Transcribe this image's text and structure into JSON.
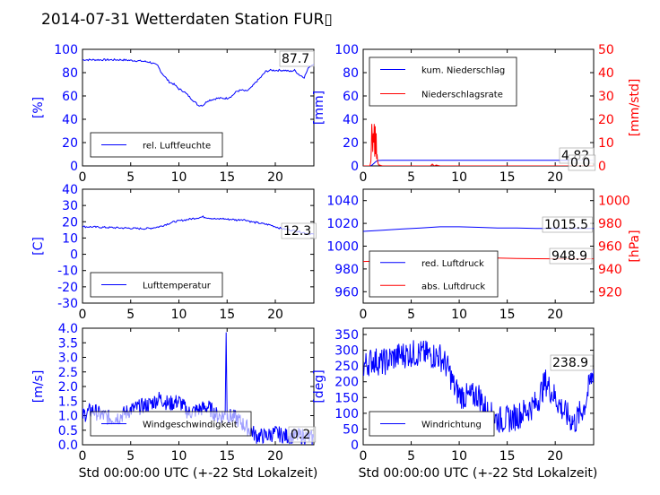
{
  "figure": {
    "title": "2014-07-31 Wetterdaten Station FUR▯",
    "xlabel": "Std 00:00:00 UTC (+-22 Std Lokalzeit)"
  },
  "colors": {
    "primary": "#0000ff",
    "secondary": "#ff0000"
  },
  "chart_data": [
    {
      "id": "humidity",
      "type": "line",
      "ylabel": "[%]",
      "xlim": [
        0,
        24
      ],
      "ylim": [
        0,
        100
      ],
      "xticks": [
        0,
        5,
        10,
        15,
        20
      ],
      "yticks": [
        0,
        20,
        40,
        60,
        80,
        100
      ],
      "annotations": [
        "87.7"
      ],
      "legend": "lower-left",
      "series": [
        {
          "name": "rel. Luftfeuchte",
          "color": "#0000ff",
          "x": [
            0,
            2,
            4,
            6,
            7,
            7.8,
            8.2,
            9,
            9.5,
            10,
            10.5,
            11,
            11.5,
            12,
            12.5,
            13,
            13.5,
            14,
            14.5,
            15,
            15.5,
            16,
            16.5,
            17,
            17.5,
            18,
            18.5,
            19,
            19.5,
            20,
            20.5,
            21,
            21.5,
            22,
            22.5,
            23,
            23.5,
            24
          ],
          "y": [
            91,
            91,
            91,
            90,
            89,
            86,
            80,
            72,
            70,
            66,
            64,
            60,
            56,
            52,
            52,
            56,
            57,
            58,
            58,
            58,
            60,
            64,
            65,
            64,
            67,
            72,
            76,
            81,
            82,
            82,
            82,
            82,
            81,
            82,
            78,
            76,
            85,
            87.7
          ]
        }
      ]
    },
    {
      "id": "precip",
      "type": "line",
      "ylabel": "[mm]",
      "y2label": "[mm/std]",
      "xlim": [
        0,
        24
      ],
      "ylim": [
        0,
        100
      ],
      "y2lim": [
        0,
        50
      ],
      "xticks": [
        0,
        5,
        10,
        15,
        20
      ],
      "yticks": [
        0,
        20,
        40,
        60,
        80,
        100
      ],
      "y2ticks": [
        0,
        10,
        20,
        30,
        40,
        50
      ],
      "annotations": [
        "4.82",
        "0.0"
      ],
      "legend": "upper-left",
      "series": [
        {
          "name": "kum. Niederschlag",
          "color": "#0000ff",
          "axis": "left",
          "x": [
            0,
            0.7,
            0.9,
            1.1,
            1.3,
            1.5,
            2,
            5,
            10,
            15,
            20,
            24
          ],
          "y": [
            0,
            0,
            0.5,
            2,
            3.5,
            4.6,
            4.82,
            4.82,
            4.82,
            4.82,
            4.82,
            4.82
          ]
        },
        {
          "name": "Niederschlagsrate",
          "color": "#ff0000",
          "axis": "right",
          "x": [
            0,
            0.7,
            0.8,
            0.85,
            0.9,
            0.95,
            1,
            1.05,
            1.1,
            1.15,
            1.2,
            1.25,
            1.3,
            1.35,
            1.4,
            1.45,
            1.5,
            1.6,
            2,
            7,
            7.2,
            7.4,
            7.6,
            8,
            24
          ],
          "y": [
            0,
            0,
            2,
            8,
            18,
            12,
            6,
            14,
            10,
            18,
            4,
            17,
            5,
            14,
            3,
            5,
            2,
            0.5,
            0,
            0,
            0.8,
            0,
            0.4,
            0,
            0
          ]
        }
      ]
    },
    {
      "id": "temperature",
      "type": "line",
      "ylabel": "[C]",
      "xlim": [
        0,
        24
      ],
      "ylim": [
        -30,
        40
      ],
      "xticks": [
        0,
        5,
        10,
        15,
        20
      ],
      "yticks": [
        -30,
        -20,
        -10,
        0,
        10,
        20,
        30,
        40
      ],
      "annotations": [
        "12.3"
      ],
      "legend": "lower-left",
      "series": [
        {
          "name": "Lufttemperatur",
          "color": "#0000ff",
          "x": [
            0,
            1,
            2,
            3,
            4,
            5,
            6,
            6.5,
            7,
            7.5,
            8,
            8.5,
            9,
            9.5,
            10,
            10.5,
            11,
            11.5,
            12,
            12.5,
            13,
            13.5,
            14,
            14.5,
            15,
            15.5,
            16,
            16.5,
            17,
            17.5,
            18,
            18.5,
            19,
            19.5,
            20,
            20.5,
            21,
            22,
            23,
            24
          ],
          "y": [
            17,
            16.8,
            16.6,
            16.4,
            16.2,
            16,
            15.8,
            15.8,
            16,
            16.5,
            17,
            18,
            19,
            20,
            20.5,
            21,
            21.5,
            22,
            22.5,
            23,
            22.5,
            22,
            21.5,
            22,
            21.5,
            21.5,
            21,
            21.5,
            21,
            20,
            19.5,
            19,
            18.5,
            18,
            17,
            16,
            15.5,
            14.5,
            13.2,
            12.3
          ]
        }
      ]
    },
    {
      "id": "pressure",
      "type": "line",
      "ylabel": "",
      "y2label": "[hPa]",
      "xlim": [
        0,
        24
      ],
      "ylim": [
        950,
        1050
      ],
      "y2lim": [
        910,
        1010
      ],
      "xticks": [
        0,
        5,
        10,
        15,
        20
      ],
      "yticks": [
        960,
        980,
        1000,
        1020,
        1040
      ],
      "y2ticks": [
        920,
        940,
        960,
        980,
        1000
      ],
      "annotations": [
        "1015.5",
        "948.9"
      ],
      "legend": "lower-left",
      "series": [
        {
          "name": "red. Luftdruck",
          "color": "#0000ff",
          "axis": "left",
          "x": [
            0,
            2,
            4,
            6,
            8,
            10,
            12,
            14,
            16,
            18,
            20,
            22,
            24
          ],
          "y": [
            1013,
            1014,
            1015,
            1016,
            1017,
            1017,
            1016.5,
            1016,
            1016,
            1015.5,
            1015.5,
            1015.5,
            1015.5
          ]
        },
        {
          "name": "abs. Luftdruck",
          "color": "#ff0000",
          "axis": "right",
          "x": [
            0,
            2,
            4,
            6,
            8,
            10,
            12,
            14,
            16,
            18,
            20,
            22,
            24
          ],
          "y": [
            946.5,
            947,
            947.5,
            948,
            949,
            949.5,
            949.5,
            949.5,
            949.2,
            949,
            948.9,
            948.9,
            948.9
          ]
        }
      ]
    },
    {
      "id": "wind_speed",
      "type": "line",
      "ylabel": "[m/s]",
      "xlim": [
        0,
        24
      ],
      "ylim": [
        0,
        4
      ],
      "xticks": [
        0,
        5,
        10,
        15,
        20
      ],
      "yticks": [
        0.0,
        0.5,
        1.0,
        1.5,
        2.0,
        2.5,
        3.0,
        3.5,
        4.0
      ],
      "annotations": [
        "0.2"
      ],
      "legend": "lower-left",
      "series": [
        {
          "name": "Windgeschwindigkeit",
          "color": "#0000ff",
          "noisy": true,
          "x": [
            0,
            1,
            2,
            3,
            4,
            5,
            6,
            7,
            8,
            9,
            10,
            11,
            12,
            13,
            14,
            14.8,
            14.9,
            15,
            15.1,
            16,
            17,
            17.5,
            18,
            19,
            20,
            21,
            22,
            23,
            24
          ],
          "y": [
            1.0,
            1.2,
            1.0,
            0.9,
            1.0,
            1.2,
            1.3,
            1.4,
            1.6,
            1.4,
            1.5,
            1.1,
            1.2,
            1.3,
            1.0,
            1.0,
            4.0,
            1.0,
            1.0,
            0.9,
            0.6,
            0.5,
            0.3,
            0.3,
            0.4,
            0.3,
            0.3,
            0.3,
            0.2
          ]
        }
      ]
    },
    {
      "id": "wind_dir",
      "type": "line",
      "ylabel": "[deg]",
      "xlim": [
        0,
        24
      ],
      "ylim": [
        0,
        370
      ],
      "xticks": [
        0,
        5,
        10,
        15,
        20
      ],
      "yticks": [
        0,
        50,
        100,
        150,
        200,
        250,
        300,
        350
      ],
      "annotations": [
        "238.9"
      ],
      "legend": "lower-left",
      "series": [
        {
          "name": "Windrichtung",
          "color": "#0000ff",
          "noisy": true,
          "x": [
            0,
            1,
            2,
            3,
            4,
            5,
            6,
            7,
            8,
            8.5,
            9,
            9.5,
            10,
            11,
            12,
            13,
            14,
            15,
            16,
            17,
            18,
            19,
            20,
            21,
            22,
            23,
            24
          ],
          "y": [
            250,
            270,
            260,
            275,
            285,
            290,
            290,
            285,
            280,
            260,
            230,
            180,
            160,
            150,
            160,
            100,
            80,
            80,
            90,
            110,
            130,
            200,
            150,
            100,
            70,
            120,
            238.9
          ]
        }
      ]
    }
  ]
}
